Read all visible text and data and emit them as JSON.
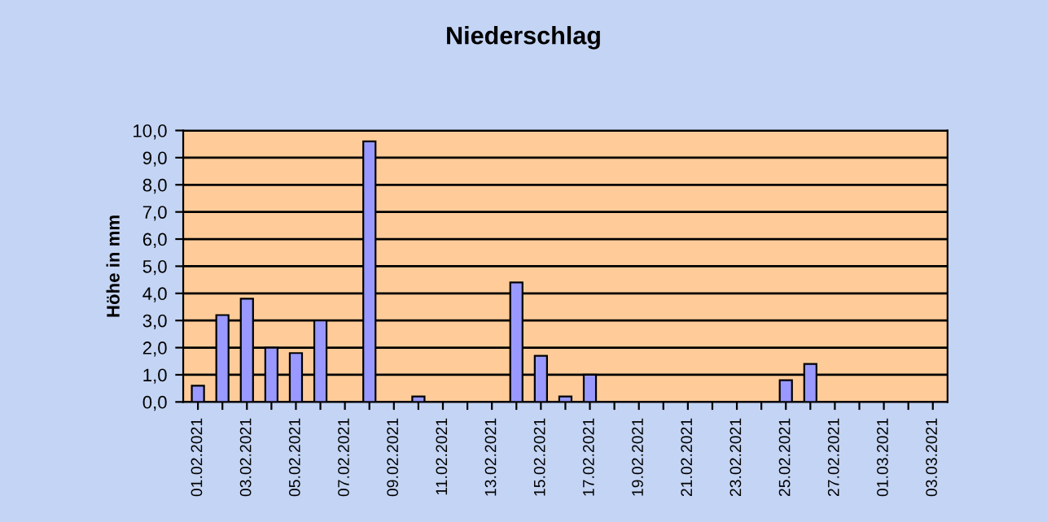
{
  "chart_data": {
    "type": "bar",
    "title": "Niederschlag",
    "ylabel": "Höhe in mm",
    "categories": [
      "01.02.2021",
      null,
      "03.02.2021",
      null,
      "05.02.2021",
      null,
      "07.02.2021",
      null,
      "09.02.2021",
      null,
      "11.02.2021",
      null,
      "13.02.2021",
      null,
      "15.02.2021",
      null,
      "17.02.2021",
      null,
      "19.02.2021",
      null,
      "21.02.2021",
      null,
      "23.02.2021",
      null,
      "25.02.2021",
      null,
      "27.02.2021",
      null,
      "01.03.2021",
      null,
      "03.03.2021"
    ],
    "values": [
      0.6,
      3.2,
      3.8,
      2.0,
      1.8,
      3.0,
      0,
      9.6,
      0,
      0.2,
      0,
      0,
      0,
      4.4,
      1.7,
      0.2,
      1.0,
      0,
      0,
      0,
      0,
      0,
      0,
      0,
      0.8,
      1.4,
      0,
      0,
      0,
      0,
      0
    ],
    "color": "#9999ff",
    "ylim": [
      0,
      10
    ],
    "yticks": [
      {
        "value": 0,
        "label": "0,0"
      },
      {
        "value": 1,
        "label": "1,0"
      },
      {
        "value": 2,
        "label": "2,0"
      },
      {
        "value": 3,
        "label": "3,0"
      },
      {
        "value": 4,
        "label": "4,0"
      },
      {
        "value": 5,
        "label": "5,0"
      },
      {
        "value": 6,
        "label": "6,0"
      },
      {
        "value": 7,
        "label": "7,0"
      },
      {
        "value": 8,
        "label": "8,0"
      },
      {
        "value": 9,
        "label": "9,0"
      },
      {
        "value": 10,
        "label": "10,0"
      }
    ],
    "grid": "y",
    "legend": false
  }
}
